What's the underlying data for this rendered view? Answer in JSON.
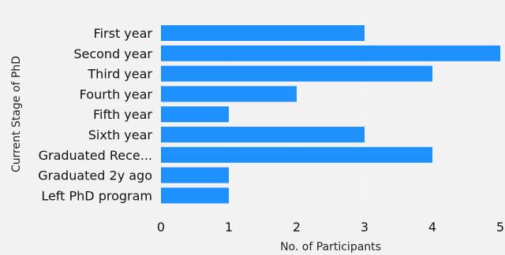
{
  "chart_data": {
    "type": "bar",
    "orientation": "horizontal",
    "categories": [
      "First year",
      "Second year",
      "Third year",
      "Fourth year",
      "Fifth year",
      "Sixth year",
      "Graduated Rece...",
      "Graduated 2y ago",
      "Left PhD program"
    ],
    "values": [
      3,
      5,
      4,
      2,
      1,
      3,
      4,
      1,
      1
    ],
    "xlabel": "No. of Participants",
    "ylabel": "Current Stage of PhD",
    "xlim": [
      0,
      5
    ],
    "xticks": [
      "0",
      "1",
      "2",
      "3",
      "4",
      "5"
    ],
    "bar_color": "#1e90ff",
    "background_color": "#f2f2f2",
    "grid": true
  }
}
